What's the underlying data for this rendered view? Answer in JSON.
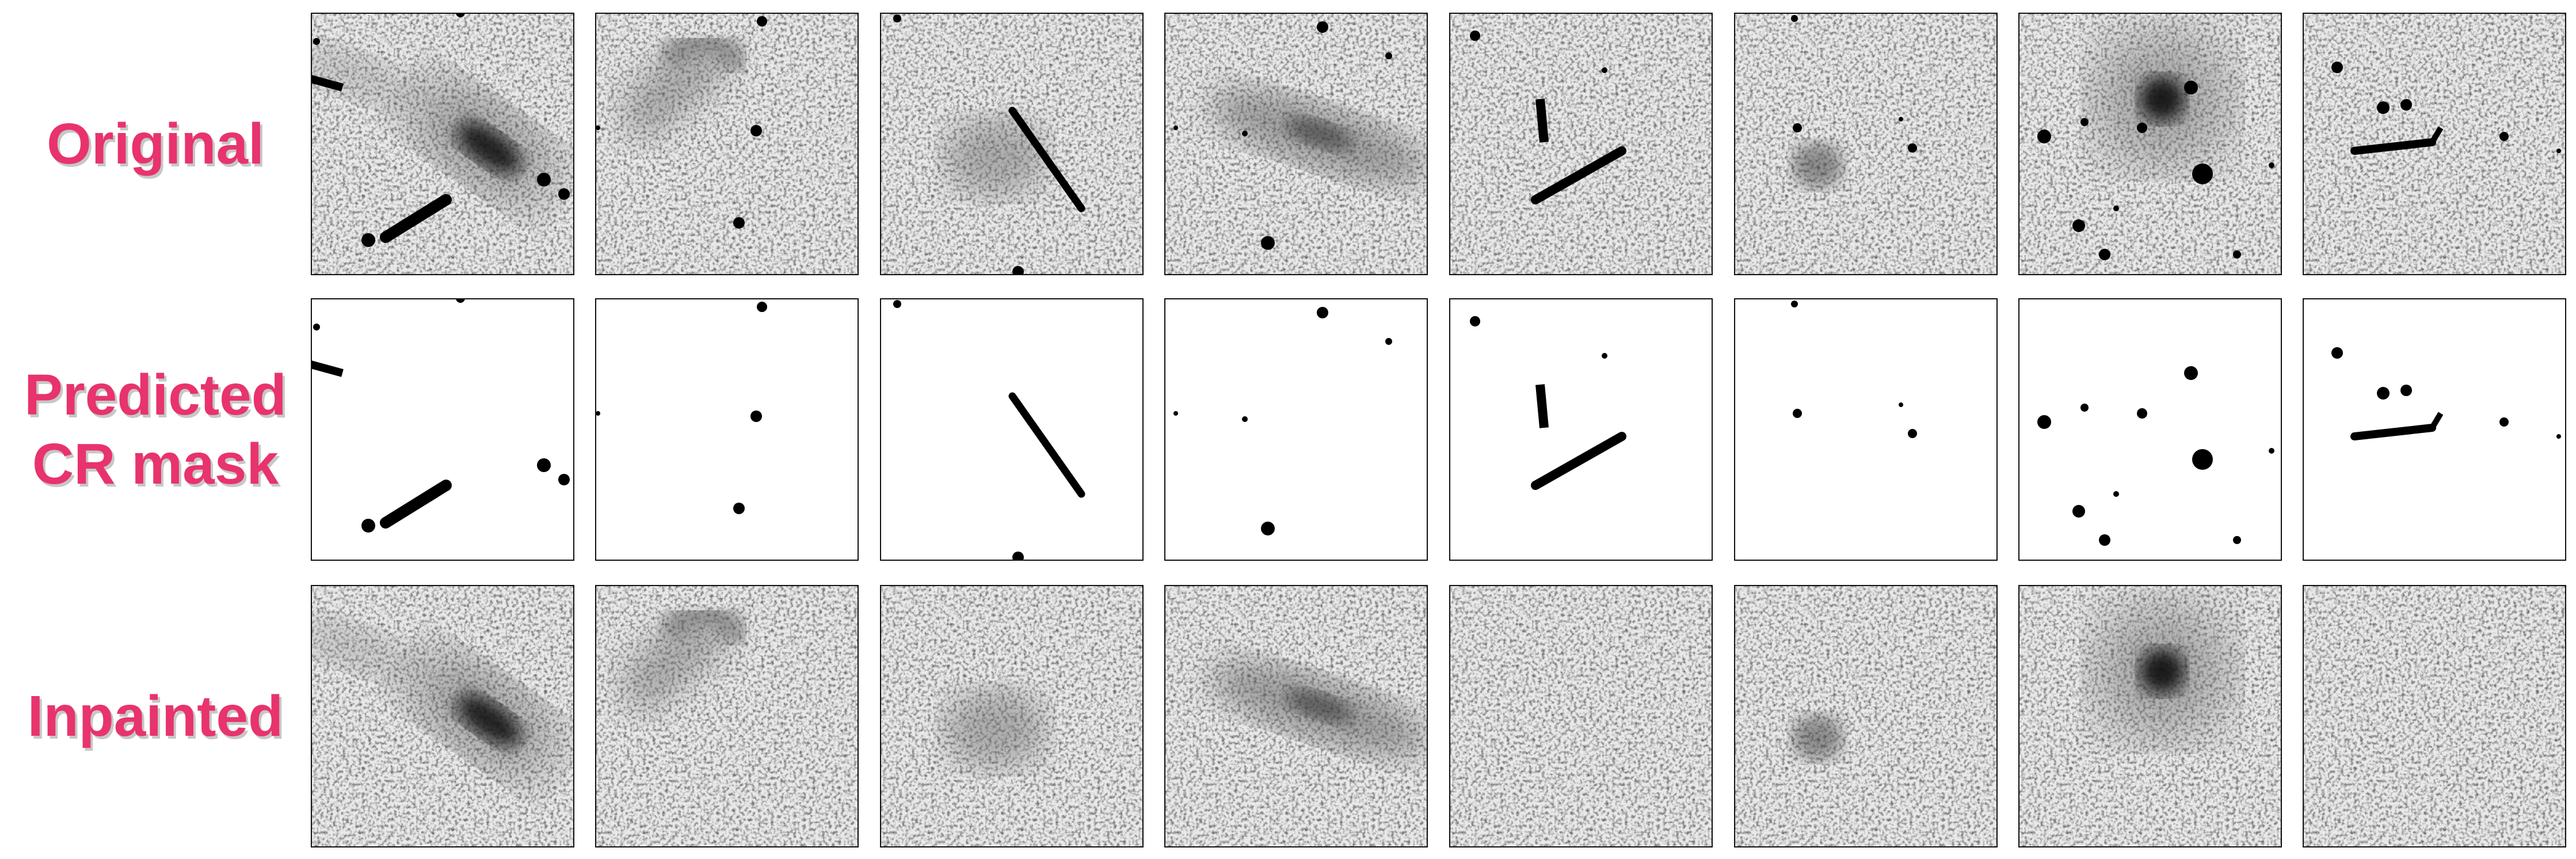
{
  "figure": {
    "rows": [
      {
        "label": "Original",
        "kind": "original"
      },
      {
        "label_lines": [
          "Predicted",
          "CR mask"
        ],
        "kind": "mask"
      },
      {
        "label": "Inpainted",
        "kind": "inpainted"
      }
    ],
    "columns": [
      {
        "galaxy": "elongated galaxy",
        "cosmic_rays": [
          "diagonal streak bottom-left",
          "edge streak left",
          "small hits right"
        ]
      },
      {
        "galaxy": "diffuse arc",
        "cosmic_rays": [
          "two small hits"
        ]
      },
      {
        "galaxy": "faint blob",
        "cosmic_rays": [
          "long diagonal streak",
          "edge hit bottom"
        ]
      },
      {
        "galaxy": "edge-on disk",
        "cosmic_rays": [
          "three small hits"
        ]
      },
      {
        "galaxy": "none visible",
        "cosmic_rays": [
          "V-shaped pair of streaks"
        ]
      },
      {
        "galaxy": "small faint blob",
        "cosmic_rays": [
          "small hits"
        ]
      },
      {
        "galaxy": "bright compact source",
        "cosmic_rays": [
          "many small hits"
        ]
      },
      {
        "galaxy": "none visible",
        "cosmic_rays": [
          "horizontal streak",
          "small hits"
        ]
      }
    ],
    "label_color": "#e8336d",
    "border_color": "#111111",
    "noise_background": "#e9e9e9",
    "mask_background": "#ffffff",
    "ink_color": "#000000"
  }
}
